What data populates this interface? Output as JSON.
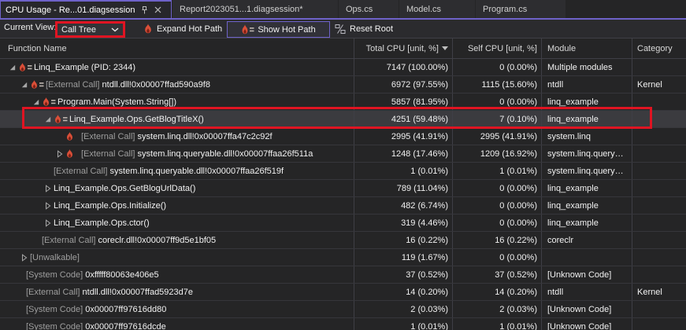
{
  "tabs": [
    {
      "label": "CPU Usage - Re...01.diagsession",
      "active": true
    },
    {
      "label": "Report2023051...1.diagsession*",
      "active": false
    },
    {
      "label": "Ops.cs",
      "active": false
    },
    {
      "label": "Model.cs",
      "active": false
    },
    {
      "label": "Program.cs",
      "active": false
    }
  ],
  "toolbar": {
    "current_view_label": "Current View:",
    "view_dropdown_value": "Call Tree",
    "expand_hot_path_label": "Expand Hot Path",
    "show_hot_path_label": "Show Hot Path",
    "reset_root_label": "Reset Root",
    "show_hot_path_toggled": true
  },
  "annotations": {
    "highlight_color": "#e01422",
    "highlighted_controls": [
      "view-dropdown",
      "selected-row"
    ]
  },
  "table": {
    "columns": [
      "Function Name",
      "Total CPU [unit, %]",
      "Self CPU [unit, %]",
      "Module",
      "Category"
    ],
    "sorted_column": "Total CPU [unit, %]",
    "sort_direction": "descending",
    "rows": [
      {
        "level": 0,
        "arrow": "expanded",
        "icon": "hotpath",
        "prefix": "",
        "name": "Linq_Example (PID: 2344)",
        "total": "7147 (100.00%)",
        "self": "0 (0.00%)",
        "module": "Multiple modules",
        "category": ""
      },
      {
        "level": 1,
        "arrow": "expanded",
        "icon": "hotpath",
        "prefix": "[External Call] ",
        "name": "ntdll.dll!0x00007ffad590a9f8",
        "total": "6972 (97.55%)",
        "self": "1115 (15.60%)",
        "module": "ntdll",
        "category": "Kernel"
      },
      {
        "level": 2,
        "arrow": "expanded",
        "icon": "hotpath",
        "prefix": "",
        "name": "Program.Main(System.String[])",
        "total": "5857 (81.95%)",
        "self": "0 (0.00%)",
        "module": "linq_example",
        "category": ""
      },
      {
        "level": 3,
        "arrow": "expanded",
        "icon": "hotpath",
        "prefix": "",
        "name": "Linq_Example.Ops.GetBlogTitleX()",
        "total": "4251 (59.48%)",
        "self": "7 (0.10%)",
        "module": "linq_example",
        "category": "",
        "selected": true
      },
      {
        "level": 4,
        "arrow": "none",
        "icon": "flame",
        "prefix": "[External Call] ",
        "name": "system.linq.dll!0x00007ffa47c2c92f",
        "total": "2995 (41.91%)",
        "self": "2995 (41.91%)",
        "module": "system.linq",
        "category": ""
      },
      {
        "level": 4,
        "arrow": "collapsed",
        "icon": "flame",
        "prefix": "[External Call] ",
        "name": "system.linq.queryable.dll!0x00007ffaa26f511a",
        "total": "1248 (17.46%)",
        "self": "1209 (16.92%)",
        "module": "system.linq.query…",
        "category": ""
      },
      {
        "level": 4,
        "arrow": "none",
        "icon": "none",
        "prefix": "[External Call] ",
        "name": "system.linq.queryable.dll!0x00007ffaa26f519f",
        "total": "1 (0.01%)",
        "self": "1 (0.01%)",
        "module": "system.linq.query…",
        "category": ""
      },
      {
        "level": 3,
        "arrow": "collapsed",
        "icon": "none",
        "prefix": "",
        "name": "Linq_Example.Ops.GetBlogUrlData()",
        "total": "789 (11.04%)",
        "self": "0 (0.00%)",
        "module": "linq_example",
        "category": ""
      },
      {
        "level": 3,
        "arrow": "collapsed",
        "icon": "none",
        "prefix": "",
        "name": "Linq_Example.Ops.Initialize()",
        "total": "482 (6.74%)",
        "self": "0 (0.00%)",
        "module": "linq_example",
        "category": ""
      },
      {
        "level": 3,
        "arrow": "collapsed",
        "icon": "none",
        "prefix": "",
        "name": "Linq_Example.Ops.ctor()",
        "total": "319 (4.46%)",
        "self": "0 (0.00%)",
        "module": "linq_example",
        "category": ""
      },
      {
        "level": 3,
        "arrow": "none",
        "icon": "none",
        "prefix": "[External Call] ",
        "name": "coreclr.dll!0x00007ff9d5e1bf05",
        "total": "16 (0.22%)",
        "self": "16 (0.22%)",
        "module": "coreclr",
        "category": ""
      },
      {
        "level": 1,
        "arrow": "collapsed",
        "icon": "none",
        "prefix": "[Unwalkable]",
        "name": "",
        "total": "119 (1.67%)",
        "self": "0 (0.00%)",
        "module": "",
        "category": ""
      },
      {
        "level": 1,
        "arrow": "none",
        "icon": "none",
        "prefix": "[System Code] ",
        "name": "0xfffff80063e406e5",
        "total": "37 (0.52%)",
        "self": "37 (0.52%)",
        "module": "[Unknown Code]",
        "category": ""
      },
      {
        "level": 1,
        "arrow": "none",
        "icon": "none",
        "prefix": "[External Call] ",
        "name": "ntdll.dll!0x00007ffad5923d7e",
        "total": "14 (0.20%)",
        "self": "14 (0.20%)",
        "module": "ntdll",
        "category": "Kernel"
      },
      {
        "level": 1,
        "arrow": "none",
        "icon": "none",
        "prefix": "[System Code] ",
        "name": "0x00007ff97616dd80",
        "total": "2 (0.03%)",
        "self": "2 (0.03%)",
        "module": "[Unknown Code]",
        "category": ""
      },
      {
        "level": 1,
        "arrow": "none",
        "icon": "none",
        "prefix": "[System Code] ",
        "name": "0x00007ff97616dcde",
        "total": "1 (0.01%)",
        "self": "1 (0.01%)",
        "module": "[Unknown Code]",
        "category": ""
      }
    ]
  },
  "colors": {
    "accent_purple": "#6e62c8",
    "annotation_red": "#e01422",
    "flame_red": "#da4f38",
    "background": "#252526",
    "selected_row": "#3b3b3f"
  },
  "icons": {
    "flame": "flame-icon",
    "hotpath": "hot-path-flame-equals-icon",
    "pin": "pin-icon",
    "close": "close-icon",
    "chevron": "chevron-down-icon",
    "reset_root": "reset-root-icon"
  }
}
